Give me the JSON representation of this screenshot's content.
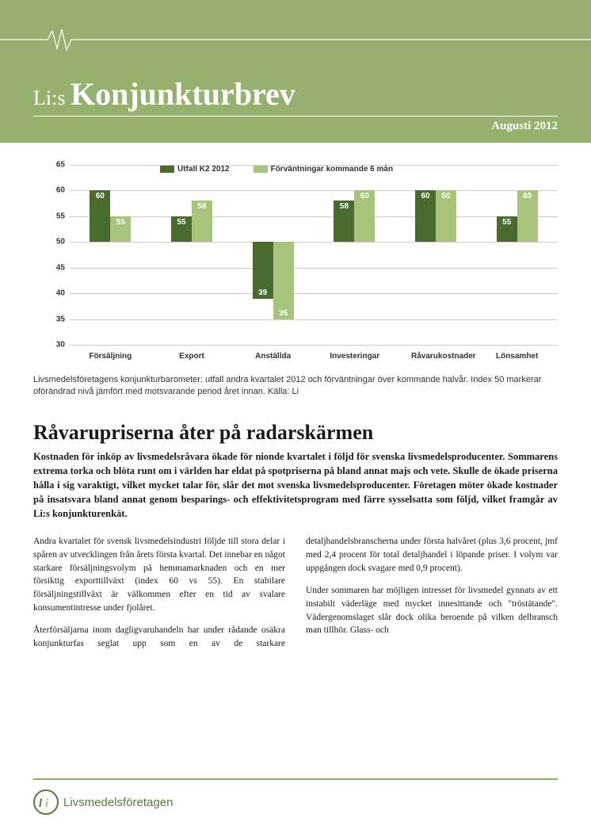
{
  "header": {
    "title_small": "Li:s ",
    "title_large": "Konjunkturbrev",
    "date": "Augusti 2012",
    "bg_color": "#96b06e",
    "text_color": "#ffffff"
  },
  "chart": {
    "type": "bar",
    "legend": [
      {
        "label": "Utfall K2 2012",
        "color": "#4a6b2e"
      },
      {
        "label": "Förväntningar kommande 6 mån",
        "color": "#a6c47a"
      }
    ],
    "ylim": [
      30,
      65
    ],
    "ytick_step": 5,
    "yticks": [
      30,
      35,
      40,
      45,
      50,
      55,
      60,
      65
    ],
    "baseline": 50,
    "grid_color": "#cccccc",
    "categories": [
      "Försäljning",
      "Export",
      "Anställda",
      "Investeringar",
      "Råvarukostnader",
      "Lönsamhet"
    ],
    "series_a": [
      60,
      55,
      39,
      58,
      60,
      55
    ],
    "series_b": [
      55,
      58,
      35,
      60,
      60,
      60
    ],
    "series_a_color": "#4a6b2e",
    "series_b_color": "#a6c47a",
    "label_fontsize": 10,
    "label_color": "#333333"
  },
  "caption": "Livsmedelsföretagens konjunkturbarometer: utfall andra kvartalet 2012 och förväntningar över kommande halvår. Index 50 markerar oförändrad nivå jämfört med motsvarande period året innan. Källa: Li",
  "article": {
    "title": "Råvarupriserna åter på radarskärmen",
    "lead": "Kostnaden för inköp av livsmedelsråvara ökade för nionde kvartalet i följd för svenska livsmedelsproducenter. Sommarens extrema torka och blöta runt om i världen har eldat på spotpriserna på bland annat majs och vete. Skulle de ökade priserna hålla i sig varaktigt, vilket mycket talar för, slår det mot svenska livsmedelsproducenter. Företagen möter ökade kostnader på insatsvara bland annat genom besparings- och effektivitetsprogram med färre sysselsatta som följd, vilket framgår av Li:s konjunkturenkät.",
    "paragraphs": [
      "Andra kvartalet för svensk livsmedelsindustri följde till stora delar i spåren av utvecklingen från årets första kvartal. Det innebar en något starkare försäljningsvolym på hemmamarknaden och en mer försiktig exporttillväxt (index 60 vs 55). En stabilare försäljningstillväxt är välkommen efter en tid av svalare konsumentintresse under fjolåret.",
      "Återförsäljarna inom dagligvaruhandeln har under rådande osäkra konjunkturfas seglat upp som en av de starkare detaljhandelsbranscherna under första halvåret (plus 3,6 procent, jmf med 2,4 procent för total detaljhandel i löpande priser. I volym var uppgången dock svagare med 0,9 procent).",
      "Under sommaren har möjligen intresset för livsmedel gynnats av ett instabilt väderläge med mycket innesittande och \"tröstätande\". Vädergenomslaget slår dock olika beroende på vilken delbransch man tillhör. Glass- och"
    ]
  },
  "footer": {
    "org_name": "Livsmedelsföretagen",
    "rule_color": "#91ac67",
    "logo_fg": "#5a7a3a"
  }
}
